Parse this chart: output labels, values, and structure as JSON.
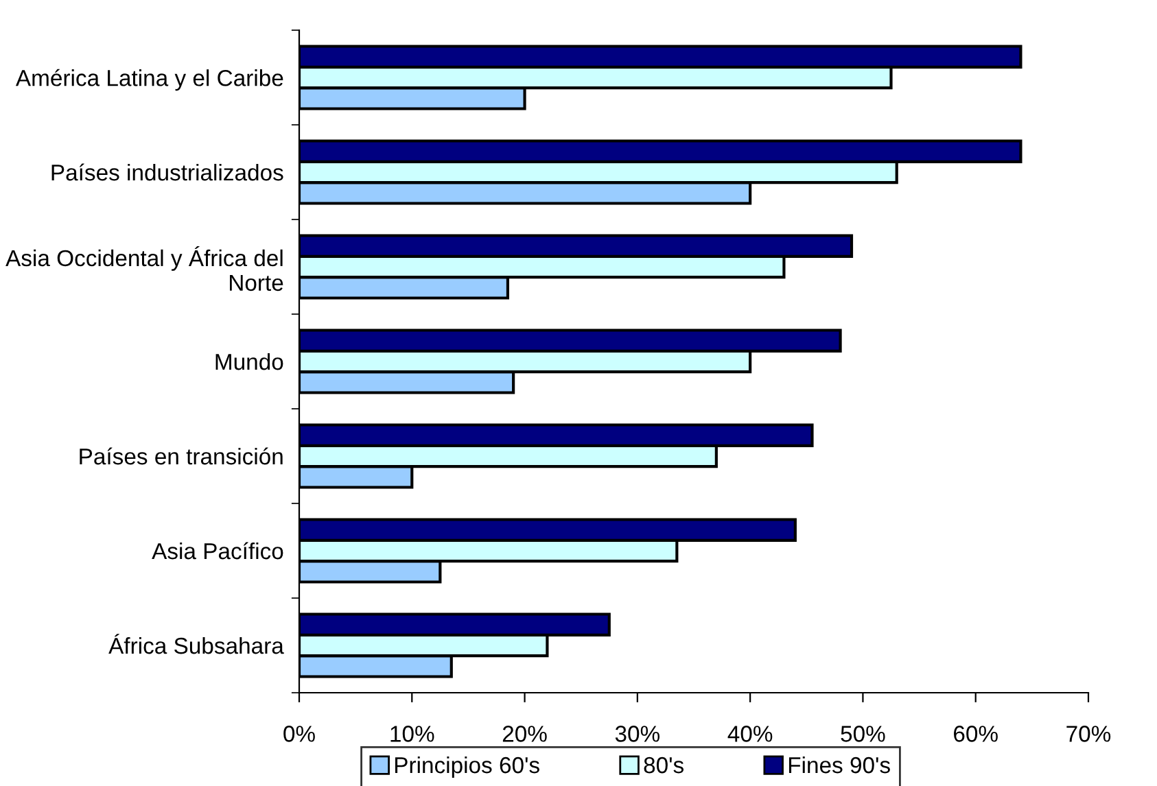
{
  "chart_data": {
    "type": "bar",
    "orientation": "horizontal",
    "categories": [
      "América Latina y el Caribe",
      "Países industrializados",
      "Asia Occidental y África del Norte",
      "Mundo",
      "Países en transición",
      "Asia Pacífico",
      "África Subsahara"
    ],
    "series": [
      {
        "name": "Principios 60's",
        "color": "#99ccff",
        "values": [
          20,
          40,
          18.5,
          19,
          10,
          12.5,
          13.5
        ]
      },
      {
        "name": "80's",
        "color": "#ccffff",
        "values": [
          52.5,
          53,
          43,
          40,
          37,
          33.5,
          22
        ]
      },
      {
        "name": "Fines 90's",
        "color": "#000080",
        "values": [
          64,
          64,
          49,
          48,
          45.5,
          44,
          27.5
        ]
      }
    ],
    "xlim": [
      0,
      70
    ],
    "xticks": [
      {
        "value": 0,
        "label": "0%"
      },
      {
        "value": 10,
        "label": "10%"
      },
      {
        "value": 20,
        "label": "20%"
      },
      {
        "value": 30,
        "label": "30%"
      },
      {
        "value": 40,
        "label": "40%"
      },
      {
        "value": 50,
        "label": "50%"
      },
      {
        "value": 60,
        "label": "60%"
      },
      {
        "value": 70,
        "label": "70%"
      }
    ],
    "grid": false,
    "legend": "bottom"
  }
}
